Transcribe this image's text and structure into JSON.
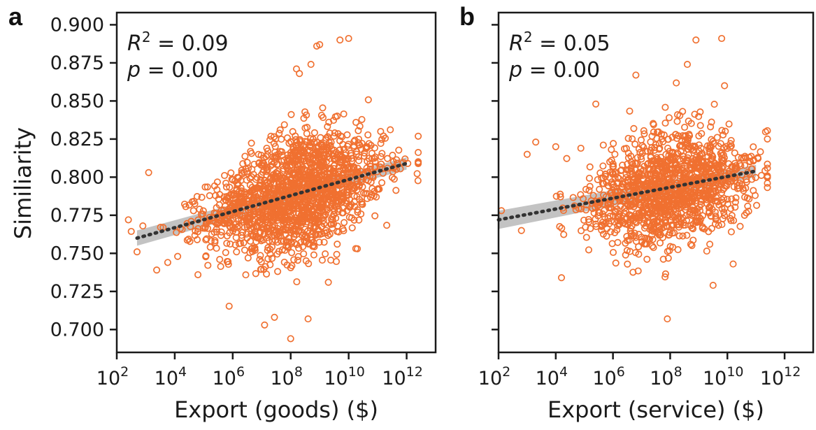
{
  "colors": {
    "points": "#f07030",
    "trend": "#333333",
    "ci_band": "#b9b9b9",
    "axes": "#1a1a1a"
  },
  "y_tick_labels": [
    "0.700",
    "0.725",
    "0.750",
    "0.775",
    "0.800",
    "0.825",
    "0.850",
    "0.875",
    "0.900"
  ],
  "chart_data": [
    {
      "type": "scatter",
      "panel_label": "a",
      "xlabel": "Export (goods) ($)",
      "ylabel": "Similiarity",
      "x_scale": "log10",
      "xlim": [
        100,
        10000000000000.0
      ],
      "ylim": [
        0.685,
        0.908
      ],
      "x_ticks": [
        100,
        10000,
        1000000,
        100000000,
        10000000000,
        1000000000000
      ],
      "y_ticks": [
        0.7,
        0.725,
        0.75,
        0.775,
        0.8,
        0.825,
        0.85,
        0.875,
        0.9
      ],
      "stats": {
        "r2_label": "R",
        "r2_value": " = 0.09",
        "p_label": "p",
        "p_value": " = 0.00"
      },
      "trend_line": {
        "x_range": [
          500,
          1000000000000.0
        ],
        "y_start": 0.76,
        "y_end": 0.809,
        "ci_start": 0.005,
        "ci_end": 0.004
      },
      "n_points": 1650,
      "cloud": {
        "x_center_log10": 8.2,
        "x_sd_log10": 1.5,
        "y_center": 0.784,
        "y_sd": 0.021
      },
      "outliers": [
        [
          10.0,
          0.891
        ],
        [
          9.7,
          0.89
        ],
        [
          9.0,
          0.887
        ],
        [
          8.9,
          0.886
        ],
        [
          8.2,
          0.871
        ],
        [
          8.3,
          0.868
        ],
        [
          8.7,
          0.874
        ],
        [
          8.0,
          0.694
        ],
        [
          8.6,
          0.707
        ],
        [
          7.1,
          0.703
        ],
        [
          2.7,
          0.751
        ],
        [
          2.4,
          0.772
        ],
        [
          3.1,
          0.803
        ],
        [
          4.1,
          0.748
        ],
        [
          4.8,
          0.736
        ],
        [
          9.3,
          0.731
        ],
        [
          10.3,
          0.753
        ],
        [
          3.6,
          0.767
        ],
        [
          2.9,
          0.768
        ],
        [
          11.2,
          0.827
        ]
      ]
    },
    {
      "type": "scatter",
      "panel_label": "b",
      "xlabel": "Export (service) ($)",
      "ylabel": "",
      "x_scale": "log10",
      "xlim": [
        100,
        10000000000000.0
      ],
      "ylim": [
        0.685,
        0.908
      ],
      "x_ticks": [
        100,
        10000,
        1000000,
        100000000,
        10000000000,
        1000000000000
      ],
      "y_ticks": [
        0.7,
        0.725,
        0.75,
        0.775,
        0.8,
        0.825,
        0.85,
        0.875,
        0.9
      ],
      "stats": {
        "r2_label": "R",
        "r2_value": " = 0.05",
        "p_label": "p",
        "p_value": " = 0.00"
      },
      "trend_line": {
        "x_range": [
          100,
          100000000000.0
        ],
        "y_start": 0.772,
        "y_end": 0.804,
        "ci_start": 0.006,
        "ci_end": 0.004
      },
      "n_points": 1300,
      "cloud": {
        "x_center_log10": 8.0,
        "x_sd_log10": 1.45,
        "y_center": 0.785,
        "y_sd": 0.02
      },
      "outliers": [
        [
          9.8,
          0.891
        ],
        [
          8.9,
          0.89
        ],
        [
          8.6,
          0.874
        ],
        [
          6.8,
          0.867
        ],
        [
          7.9,
          0.707
        ],
        [
          9.5,
          0.729
        ],
        [
          4.2,
          0.734
        ],
        [
          3.0,
          0.815
        ],
        [
          2.8,
          0.765
        ],
        [
          2.1,
          0.778
        ],
        [
          3.3,
          0.823
        ],
        [
          9.9,
          0.86
        ],
        [
          10.6,
          0.775
        ],
        [
          5.4,
          0.848
        ],
        [
          10.2,
          0.743
        ],
        [
          4.0,
          0.82
        ]
      ]
    }
  ]
}
